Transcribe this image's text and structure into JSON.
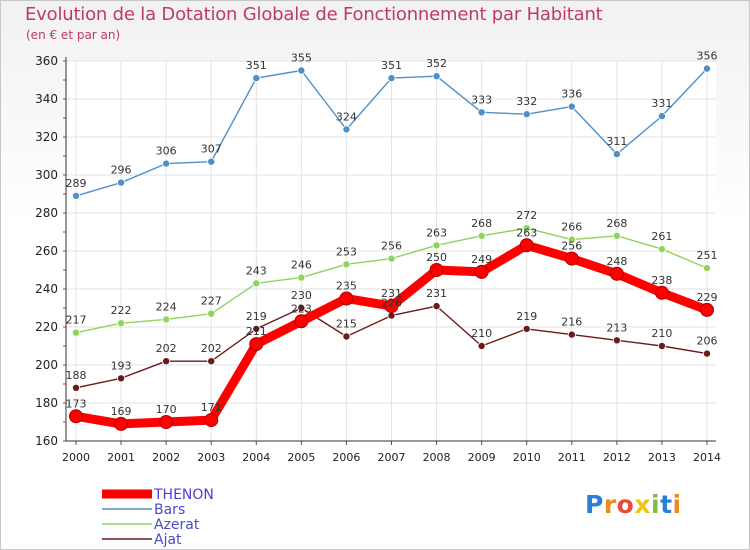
{
  "title": "Evolution de la Dotation Globale de Fonctionnement par Habitant",
  "subtitle": "(en € et par an)",
  "logo_text": "Proxiti",
  "chart_data": {
    "type": "line",
    "title": "Evolution de la Dotation Globale de Fonctionnement par Habitant",
    "subtitle": "(en € et par an)",
    "x": [
      "2000",
      "2001",
      "2002",
      "2003",
      "2004",
      "2005",
      "2006",
      "2007",
      "2008",
      "2009",
      "2010",
      "2011",
      "2012",
      "2013",
      "2014"
    ],
    "ylim": [
      160,
      360
    ],
    "yticks": [
      160,
      180,
      200,
      220,
      240,
      260,
      280,
      300,
      320,
      340,
      360
    ],
    "grid": true,
    "legend": "bottom-left",
    "series": [
      {
        "name": "THENON",
        "color": "#ff0000",
        "values": [
          173,
          169,
          170,
          171,
          211,
          223,
          235,
          231,
          250,
          249,
          263,
          256,
          248,
          238,
          229
        ],
        "labels": [
          "173",
          "169",
          "170",
          "171",
          "211",
          "223",
          "235",
          "231",
          "250",
          "249",
          "263",
          "256",
          "248",
          "238",
          "229"
        ]
      },
      {
        "name": "Bars",
        "color": "#4f8fc8",
        "values": [
          289,
          296,
          306,
          307,
          351,
          355,
          324,
          351,
          352,
          333,
          332,
          336,
          311,
          331,
          356
        ],
        "labels": [
          "289",
          "296",
          "306",
          "307",
          "351",
          "355",
          "324",
          "351",
          "352",
          "333",
          "332",
          "336",
          "311",
          "331",
          "356"
        ]
      },
      {
        "name": "Azerat",
        "color": "#8fd35f",
        "values": [
          217,
          222,
          224,
          227,
          243,
          246,
          253,
          256,
          263,
          268,
          272,
          266,
          268,
          261,
          251
        ],
        "labels": [
          "217",
          "222",
          "224",
          "227",
          "243",
          "246",
          "253",
          "256",
          "263",
          "268",
          "272",
          "266",
          "268",
          "261",
          "251"
        ]
      },
      {
        "name": "Ajat",
        "color": "#6b1a1a",
        "values": [
          188,
          193,
          202,
          202,
          219,
          230,
          215,
          226,
          231,
          210,
          219,
          216,
          213,
          210,
          206
        ],
        "labels": [
          "188",
          "193",
          "202",
          "202",
          "219",
          "230",
          "215",
          "226",
          "231",
          "210",
          "219",
          "216",
          "213",
          "210",
          "206"
        ]
      }
    ]
  }
}
